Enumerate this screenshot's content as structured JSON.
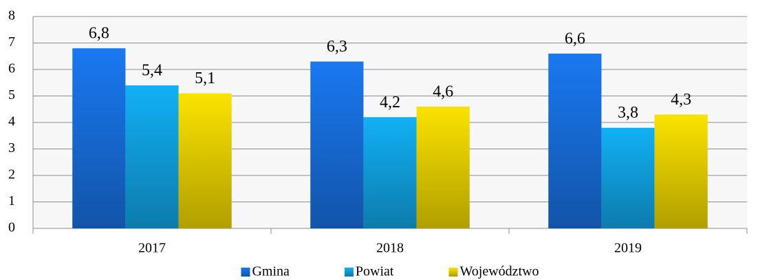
{
  "chart_data": {
    "type": "bar",
    "categories": [
      "2017",
      "2018",
      "2019"
    ],
    "series": [
      {
        "name": "Gmina",
        "color": "#1a78f0",
        "values": [
          6.8,
          6.3,
          6.6
        ],
        "value_labels": [
          "6,8",
          "6,3",
          "6,6"
        ]
      },
      {
        "name": "Powiat",
        "color": "#12b0f5",
        "values": [
          5.4,
          4.2,
          3.8
        ],
        "value_labels": [
          "5,4",
          "4,2",
          "3,8"
        ]
      },
      {
        "name": "Województwo",
        "color": "#fbe300",
        "values": [
          5.1,
          4.6,
          4.3
        ],
        "value_labels": [
          "5,1",
          "4,6",
          "4,3"
        ]
      }
    ],
    "ylim": [
      0,
      8
    ],
    "yticks": [
      0,
      1,
      2,
      3,
      4,
      5,
      6,
      7,
      8
    ],
    "grid": true,
    "legend": "bottom"
  }
}
